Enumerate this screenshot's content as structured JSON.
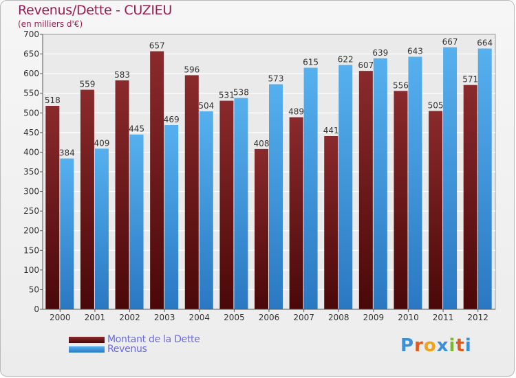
{
  "header": {
    "title": "Revenus/Dette - CUZIEU",
    "subtitle": "(en milliers d'€)"
  },
  "logo": {
    "text": "Proxiti",
    "colors": [
      "#3b8fd4",
      "#e05a1e",
      "#f0a21a",
      "#3b8fd4",
      "#7ab82e",
      "#e05a1e",
      "#3b8fd4"
    ]
  },
  "chart_data": {
    "type": "bar",
    "title": "Revenus/Dette - CUZIEU",
    "subtitle": "(en milliers d'€)",
    "categories": [
      "2000",
      "2001",
      "2002",
      "2003",
      "2004",
      "2005",
      "2006",
      "2007",
      "2008",
      "2009",
      "2010",
      "2011",
      "2012"
    ],
    "series": [
      {
        "name": "Montant de la Dette",
        "values": [
          518,
          559,
          583,
          657,
          596,
          531,
          408,
          489,
          441,
          607,
          556,
          505,
          571
        ],
        "color": "#7a1e22"
      },
      {
        "name": "Revenus",
        "values": [
          384,
          409,
          445,
          469,
          504,
          538,
          573,
          615,
          622,
          639,
          643,
          667,
          664
        ],
        "color": "#4aa5e6"
      }
    ],
    "ylim": [
      0,
      700
    ],
    "yticks": [
      0,
      50,
      100,
      150,
      200,
      250,
      300,
      350,
      400,
      450,
      500,
      550,
      600,
      650,
      700
    ],
    "grid": true,
    "legend_position": "bottom-left"
  }
}
